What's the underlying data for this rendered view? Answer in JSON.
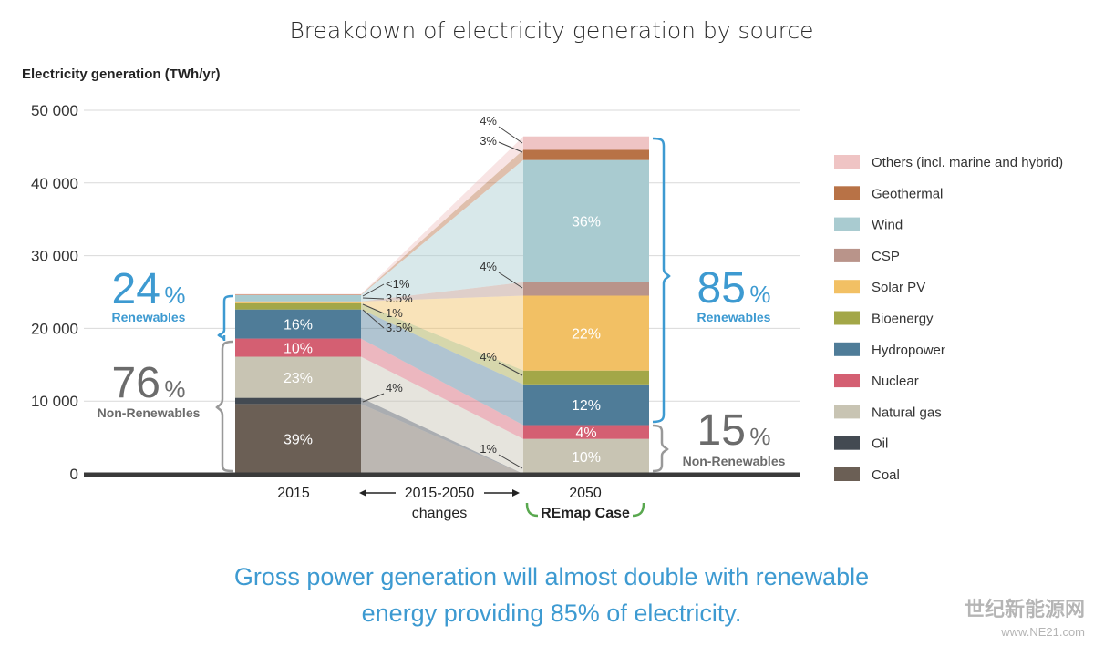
{
  "chart_data": {
    "type": "bar",
    "title": "Breakdown of electricity generation by source",
    "ylabel": "Electricity generation (TWh/yr)",
    "ylim": [
      0,
      50000
    ],
    "yticks": [
      "0",
      "10 000",
      "20 000",
      "30 000",
      "40 000",
      "50 000"
    ],
    "grid": true,
    "categories": [
      "2015",
      "2050"
    ],
    "legend_position": "right",
    "series": [
      {
        "name": "Coal",
        "color": "#6b5f55",
        "values": [
          9600,
          0
        ],
        "labels": [
          "39%",
          ""
        ]
      },
      {
        "name": "Oil",
        "color": "#434a52",
        "values": [
          850,
          0
        ],
        "labels": [
          "",
          ""
        ]
      },
      {
        "name": "Natural gas",
        "color": "#c8c4b3",
        "values": [
          5650,
          4800
        ],
        "labels": [
          "23%",
          "10%"
        ]
      },
      {
        "name": "Nuclear",
        "color": "#d45f72",
        "values": [
          2500,
          1900
        ],
        "labels": [
          "10%",
          "4%"
        ]
      },
      {
        "name": "Hydropower",
        "color": "#4f7c98",
        "values": [
          4000,
          5600
        ],
        "labels": [
          "16%",
          "12%"
        ]
      },
      {
        "name": "Bioenergy",
        "color": "#a3a748",
        "values": [
          850,
          1900
        ],
        "labels": [
          "",
          ""
        ]
      },
      {
        "name": "Solar PV",
        "color": "#f2c064",
        "values": [
          250,
          10300
        ],
        "labels": [
          "",
          "22%"
        ]
      },
      {
        "name": "CSP",
        "color": "#b9948a",
        "values": [
          20,
          1850
        ],
        "labels": [
          "",
          ""
        ]
      },
      {
        "name": "Wind",
        "color": "#a9cbd0",
        "values": [
          850,
          16800
        ],
        "labels": [
          "",
          "36%"
        ]
      },
      {
        "name": "Geothermal",
        "color": "#b87246",
        "values": [
          70,
          1400
        ],
        "labels": [
          "",
          ""
        ]
      },
      {
        "name": "Others (incl. marine and hybrid)",
        "color": "#efc4c4",
        "values": [
          70,
          1850
        ],
        "labels": [
          "",
          ""
        ]
      }
    ],
    "changes_label": "2015-2050\nchanges",
    "changes_annotations": [
      "<1%",
      "3.5%",
      "1%",
      "3.5%",
      "4%"
    ],
    "annotations_2050": [
      "4%",
      "3%",
      "4%",
      "4%",
      "1%"
    ],
    "summary_2015": {
      "renewables_pct": "24%",
      "renewables_label": "Renewables",
      "nonrenewables_pct": "76%",
      "nonrenewables_label": "Non-Renewables"
    },
    "summary_2050": {
      "renewables_pct": "85%",
      "renewables_label": "Renewables",
      "nonrenewables_pct": "15%",
      "nonrenewables_label": "Non-Renewables"
    },
    "scenario_label": "REmap Case"
  },
  "headline_line1": "Gross power generation will almost double with renewable",
  "headline_line2": "energy providing 85% of electricity.",
  "watermark_cn": "世纪新能源网",
  "watermark_url": "www.NE21.com"
}
